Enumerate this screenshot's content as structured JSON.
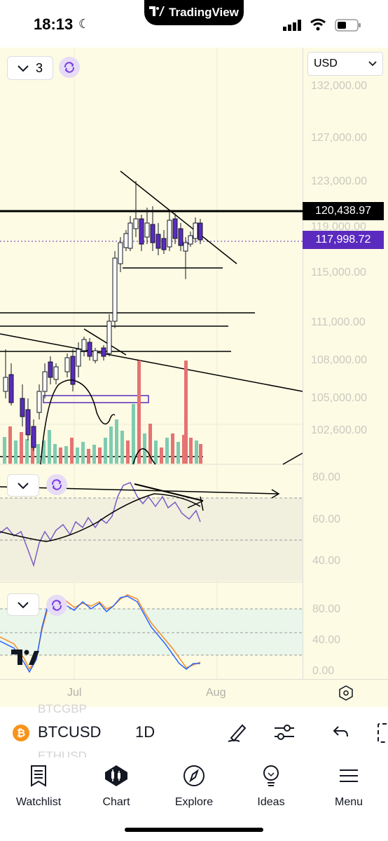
{
  "status_bar": {
    "time": "18:13",
    "island_label": "TradingView"
  },
  "chart": {
    "currency": "USD",
    "indicator_count": "3",
    "price_labels": [
      "132,000.00",
      "127,000.00",
      "123,000.00",
      "119,000.00",
      "115,000.00",
      "111,000.00",
      "108,000.00",
      "105,000.00",
      "102,600.00"
    ],
    "line_price": "120,438.97",
    "last_price": "117,998.72",
    "osc1_labels": [
      "80.00",
      "60.00",
      "40.00"
    ],
    "osc2_labels": [
      "80.00",
      "40.00",
      "0.00"
    ],
    "time_labels": [
      "Jul",
      "Aug"
    ],
    "colors": {
      "accent": "#5b2bbf",
      "down": "#e57373",
      "up": "#7fcbb0",
      "price_line": "#000000"
    }
  },
  "toolbar": {
    "symbol": "BTCUSD",
    "interval": "1D",
    "ghost_above": "BTCGBP",
    "ghost_below": "ETHUSD",
    "icons": [
      "bitcoin-icon",
      "pen-icon",
      "sliders-icon",
      "undo-icon",
      "panel-icon"
    ]
  },
  "nav": [
    {
      "label": "Watchlist",
      "icon": "watchlist-icon"
    },
    {
      "label": "Chart",
      "icon": "chart-icon"
    },
    {
      "label": "Explore",
      "icon": "compass-icon"
    },
    {
      "label": "Ideas",
      "icon": "bulb-icon"
    },
    {
      "label": "Menu",
      "icon": "menu-icon"
    }
  ]
}
